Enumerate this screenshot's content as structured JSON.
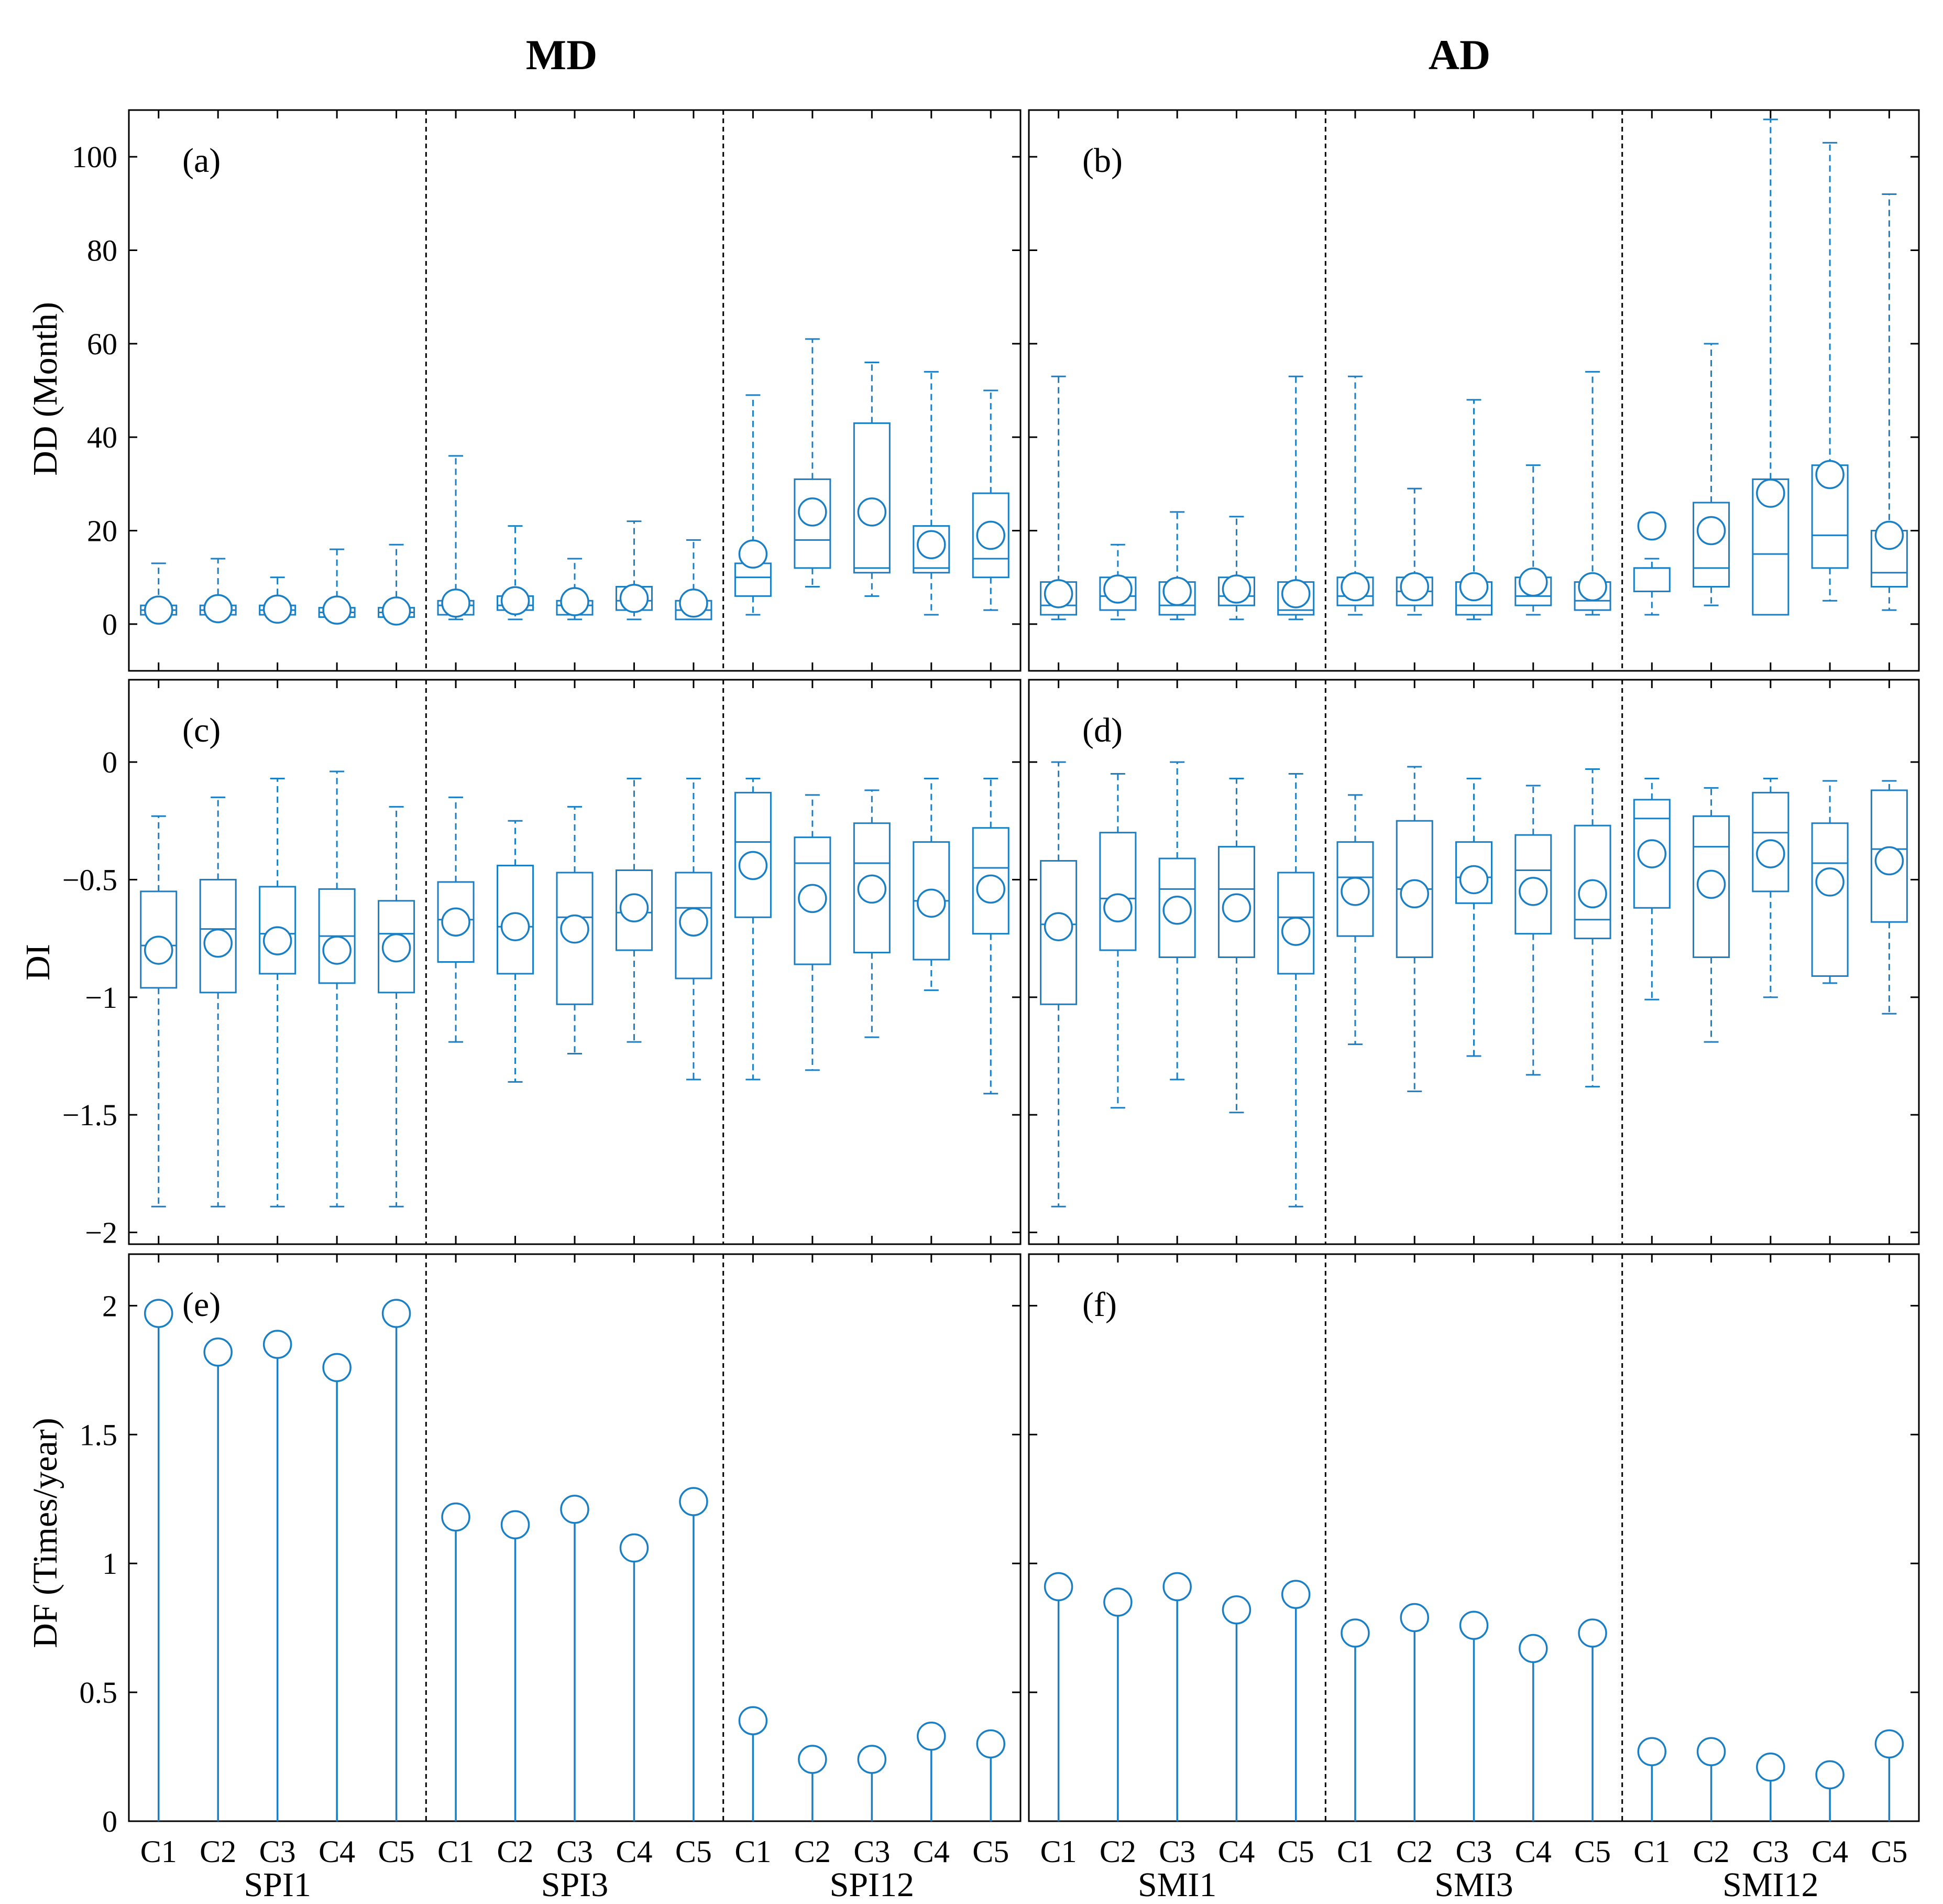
{
  "colors": {
    "series": "#1a7fc4",
    "axis": "#000000",
    "divider": "#000000"
  },
  "chart_data": {
    "type": "box_and_stem",
    "column_titles": [
      "MD",
      "AD"
    ],
    "categories": [
      "C1",
      "C2",
      "C3",
      "C4",
      "C5"
    ],
    "groups": {
      "left": [
        "SPI1",
        "SPI3",
        "SPI12"
      ],
      "right": [
        "SMI1",
        "SMI3",
        "SMI12"
      ]
    },
    "rows": [
      {
        "ylabel": "DD (Month)",
        "ylim": [
          -10,
          110
        ],
        "yticks": [
          0,
          20,
          40,
          60,
          80,
          100
        ],
        "yticklabels": [
          "0",
          "20",
          "40",
          "60",
          "80",
          "100"
        ]
      },
      {
        "ylabel": "DI",
        "ylim": [
          -2.05,
          0.35
        ],
        "yticks": [
          -2,
          -1.5,
          -1,
          -0.5,
          0
        ],
        "yticklabels": [
          "−2",
          "−1.5",
          "−1",
          "−0.5",
          "0"
        ]
      },
      {
        "ylabel": "DF (Times/year)",
        "ylim": [
          0,
          2.2
        ],
        "yticks": [
          0,
          0.5,
          1,
          1.5,
          2
        ],
        "yticklabels": [
          "0",
          "0.5",
          "1",
          "1.5",
          "2"
        ]
      }
    ],
    "panels": [
      {
        "label": "(a)",
        "row": 0,
        "col": 0,
        "kind": "box",
        "boxes": [
          [
            1,
            2,
            3,
            4,
            13,
            3
          ],
          [
            1,
            2,
            3,
            4,
            14,
            3.3
          ],
          [
            1,
            2,
            3,
            4,
            10,
            3.2
          ],
          [
            1,
            1.5,
            2.5,
            3.5,
            16,
            3
          ],
          [
            1,
            1.5,
            2.5,
            3.5,
            17,
            2.8
          ],
          [
            1,
            2,
            4,
            5,
            36,
            4.5
          ],
          [
            1,
            3,
            4,
            6,
            21,
            5
          ],
          [
            1,
            2,
            4,
            5,
            14,
            4.8
          ],
          [
            1,
            3,
            5,
            8,
            22,
            5.5
          ],
          [
            1,
            1,
            3,
            5,
            18,
            4.5
          ],
          [
            2,
            6,
            10,
            13,
            49,
            15
          ],
          [
            8,
            12,
            18,
            31,
            61,
            24
          ],
          [
            6,
            11,
            12,
            43,
            56,
            24
          ],
          [
            2,
            11,
            12,
            21,
            54,
            17
          ],
          [
            3,
            10,
            14,
            28,
            50,
            19
          ]
        ]
      },
      {
        "label": "(b)",
        "row": 0,
        "col": 1,
        "kind": "box",
        "boxes": [
          [
            1,
            2,
            4,
            9,
            53,
            6.5
          ],
          [
            1,
            3,
            6,
            10,
            17,
            7.5
          ],
          [
            1,
            2,
            4,
            9,
            24,
            7
          ],
          [
            1,
            4,
            6,
            10,
            23,
            7.5
          ],
          [
            1,
            2,
            3,
            9,
            53,
            6.5
          ],
          [
            2,
            4,
            6,
            10,
            53,
            8
          ],
          [
            2,
            4,
            7,
            10,
            29,
            8
          ],
          [
            1,
            2,
            4,
            9,
            48,
            8
          ],
          [
            2,
            4,
            6,
            10,
            34,
            9
          ],
          [
            2,
            3,
            5,
            9,
            54,
            8
          ],
          [
            2,
            7,
            12,
            12,
            14,
            21
          ],
          [
            4,
            8,
            12,
            26,
            60,
            20
          ],
          [
            2,
            2,
            15,
            31,
            108,
            28
          ],
          [
            5,
            12,
            19,
            34,
            103,
            32
          ],
          [
            3,
            8,
            11,
            20,
            92,
            19
          ]
        ]
      },
      {
        "label": "(c)",
        "row": 1,
        "col": 0,
        "kind": "box",
        "boxes": [
          [
            -1.89,
            -0.96,
            -0.78,
            -0.55,
            -0.23,
            -0.8
          ],
          [
            -1.89,
            -0.98,
            -0.71,
            -0.5,
            -0.15,
            -0.77
          ],
          [
            -1.89,
            -0.9,
            -0.73,
            -0.53,
            -0.07,
            -0.76
          ],
          [
            -1.89,
            -0.94,
            -0.74,
            -0.54,
            -0.04,
            -0.8
          ],
          [
            -1.89,
            -0.98,
            -0.73,
            -0.59,
            -0.19,
            -0.79
          ],
          [
            -1.19,
            -0.85,
            -0.67,
            -0.51,
            -0.15,
            -0.68
          ],
          [
            -1.36,
            -0.9,
            -0.7,
            -0.44,
            -0.25,
            -0.7
          ],
          [
            -1.24,
            -1.03,
            -0.66,
            -0.47,
            -0.19,
            -0.71
          ],
          [
            -1.19,
            -0.8,
            -0.64,
            -0.46,
            -0.07,
            -0.62
          ],
          [
            -1.35,
            -0.92,
            -0.62,
            -0.47,
            -0.07,
            -0.68
          ],
          [
            -1.35,
            -0.66,
            -0.34,
            -0.13,
            -0.07,
            -0.44
          ],
          [
            -1.31,
            -0.86,
            -0.43,
            -0.32,
            -0.14,
            -0.58
          ],
          [
            -1.17,
            -0.81,
            -0.43,
            -0.26,
            -0.12,
            -0.54
          ],
          [
            -0.97,
            -0.84,
            -0.59,
            -0.34,
            -0.07,
            -0.6
          ],
          [
            -1.41,
            -0.73,
            -0.45,
            -0.28,
            -0.07,
            -0.54
          ]
        ]
      },
      {
        "label": "(d)",
        "row": 1,
        "col": 1,
        "kind": "box",
        "boxes": [
          [
            -1.89,
            -1.03,
            -0.69,
            -0.42,
            0,
            -0.7
          ],
          [
            -1.47,
            -0.8,
            -0.58,
            -0.3,
            -0.05,
            -0.62
          ],
          [
            -1.35,
            -0.83,
            -0.54,
            -0.41,
            0,
            -0.63
          ],
          [
            -1.49,
            -0.83,
            -0.54,
            -0.36,
            -0.07,
            -0.62
          ],
          [
            -1.89,
            -0.9,
            -0.66,
            -0.47,
            -0.05,
            -0.72
          ],
          [
            -1.2,
            -0.74,
            -0.49,
            -0.34,
            -0.14,
            -0.55
          ],
          [
            -1.4,
            -0.83,
            -0.54,
            -0.25,
            -0.02,
            -0.56
          ],
          [
            -1.25,
            -0.6,
            -0.49,
            -0.34,
            -0.07,
            -0.5
          ],
          [
            -1.33,
            -0.73,
            -0.46,
            -0.31,
            -0.1,
            -0.55
          ],
          [
            -1.38,
            -0.75,
            -0.67,
            -0.27,
            -0.03,
            -0.56
          ],
          [
            -1.01,
            -0.62,
            -0.24,
            -0.16,
            -0.07,
            -0.39
          ],
          [
            -1.19,
            -0.83,
            -0.36,
            -0.23,
            -0.11,
            -0.52
          ],
          [
            -1.0,
            -0.55,
            -0.3,
            -0.13,
            -0.07,
            -0.39
          ],
          [
            -0.94,
            -0.91,
            -0.43,
            -0.26,
            -0.08,
            -0.51
          ],
          [
            -1.07,
            -0.68,
            -0.37,
            -0.12,
            -0.08,
            -0.42
          ]
        ]
      },
      {
        "label": "(e)",
        "row": 2,
        "col": 0,
        "kind": "stem",
        "values": [
          1.97,
          1.82,
          1.85,
          1.76,
          1.97,
          1.18,
          1.15,
          1.21,
          1.06,
          1.24,
          0.39,
          0.24,
          0.24,
          0.33,
          0.3
        ]
      },
      {
        "label": "(f)",
        "row": 2,
        "col": 1,
        "kind": "stem",
        "values": [
          0.91,
          0.85,
          0.91,
          0.82,
          0.88,
          0.73,
          0.79,
          0.76,
          0.67,
          0.73,
          0.27,
          0.27,
          0.21,
          0.18,
          0.3
        ]
      }
    ],
    "box_fields": [
      "min",
      "q1",
      "median",
      "q3",
      "max",
      "mean"
    ]
  }
}
